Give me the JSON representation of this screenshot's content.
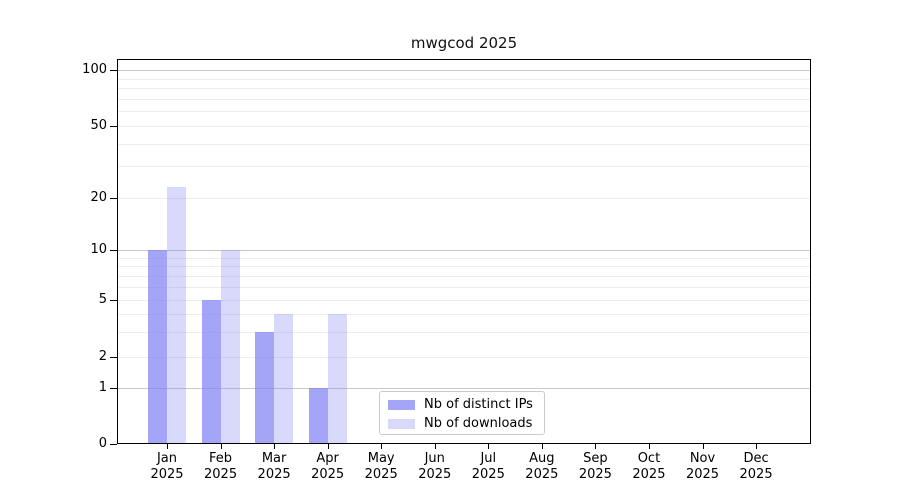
{
  "title": "mwgcod 2025",
  "chart_data": {
    "type": "bar",
    "title": "mwgcod 2025",
    "categories": [
      "Jan",
      "Feb",
      "Mar",
      "Apr",
      "May",
      "Jun",
      "Jul",
      "Aug",
      "Sep",
      "Oct",
      "Nov",
      "Dec"
    ],
    "year_label": "2025",
    "series": [
      {
        "name": "Nb of distinct IPs",
        "values": [
          10,
          5,
          3,
          1,
          0,
          0,
          0,
          0,
          0,
          0,
          0,
          0
        ],
        "color": "rgba(130,130,245,0.72)"
      },
      {
        "name": "Nb of downloads",
        "values": [
          23,
          10,
          4,
          4,
          0,
          0,
          0,
          0,
          0,
          0,
          0,
          0
        ],
        "color": "rgba(130,130,245,0.30)"
      }
    ],
    "ytick_labels": [
      "0",
      "1",
      "2",
      "5",
      "10",
      "20",
      "50",
      "100"
    ],
    "ytick_values": [
      0,
      1,
      2,
      5,
      10,
      20,
      50,
      100
    ],
    "ylim": [
      0,
      100
    ],
    "yscale": "log-like",
    "grid": "on",
    "legend_position": "lower-center",
    "axis_color": "#000000",
    "major_grid_color": "#c9c9c9",
    "minor_grid_color": "#ededed"
  }
}
